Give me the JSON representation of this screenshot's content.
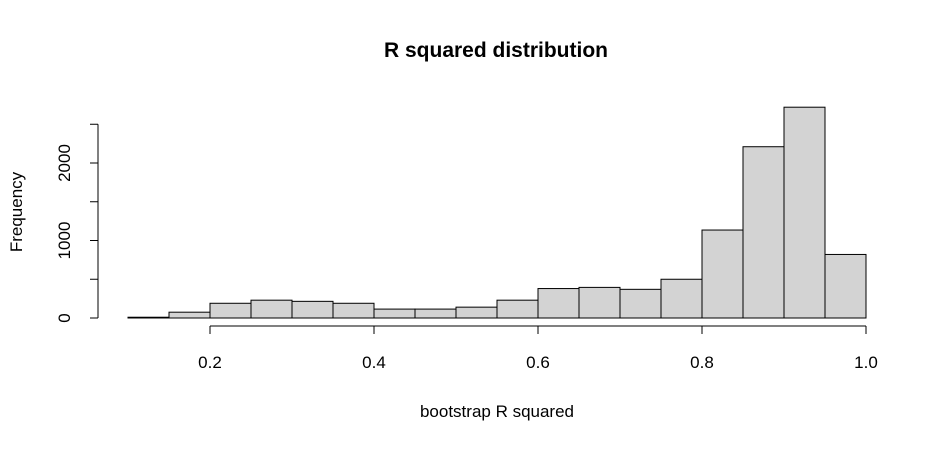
{
  "chart_data": {
    "type": "bar",
    "title": "R squared distribution",
    "xlabel": "bootstrap R squared",
    "ylabel": "Frequency",
    "xlim": [
      0.1,
      1.0
    ],
    "ylim": [
      0,
      2700
    ],
    "bin_edges": [
      0.1,
      0.15,
      0.2,
      0.25,
      0.3,
      0.35,
      0.4,
      0.45,
      0.5,
      0.55,
      0.6,
      0.65,
      0.7,
      0.75,
      0.8,
      0.85,
      0.9,
      0.95,
      1.0
    ],
    "values": [
      10,
      75,
      190,
      230,
      215,
      190,
      115,
      115,
      140,
      230,
      380,
      395,
      370,
      500,
      1135,
      2210,
      2720,
      820
    ],
    "x_ticks": [
      "0.2",
      "0.4",
      "0.6",
      "0.8",
      "1.0"
    ],
    "y_ticks": [
      "0",
      "1000",
      "2000"
    ],
    "bar_color": "#d3d3d3",
    "grid": false,
    "legend": "none"
  }
}
